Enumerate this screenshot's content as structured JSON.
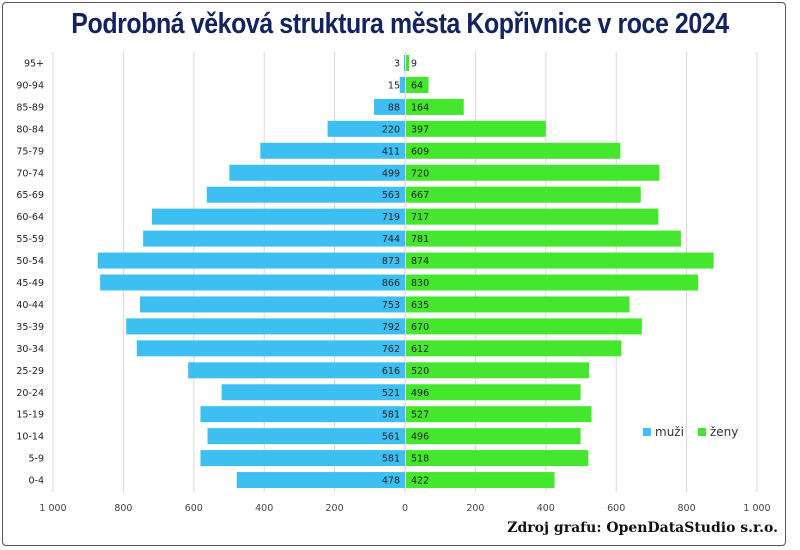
{
  "chart_data": {
    "type": "bar",
    "orientation": "horizontal-pyramid",
    "title": "Podrobná věková struktura města Kopřivnice v roce 2024",
    "categories": [
      "95+",
      "90-94",
      "85-89",
      "80-84",
      "75-79",
      "70-74",
      "65-69",
      "60-64",
      "55-59",
      "50-54",
      "45-49",
      "40-44",
      "35-39",
      "30-34",
      "25-29",
      "20-24",
      "15-19",
      "10-14",
      "5-9",
      "0-4"
    ],
    "series": [
      {
        "name": "muži",
        "color": "#3dbff2",
        "values": [
          3,
          15,
          88,
          220,
          411,
          499,
          563,
          719,
          744,
          873,
          866,
          753,
          792,
          762,
          616,
          521,
          581,
          561,
          581,
          478
        ]
      },
      {
        "name": "ženy",
        "color": "#45e62e",
        "values": [
          9,
          64,
          164,
          397,
          609,
          720,
          667,
          717,
          781,
          874,
          830,
          635,
          670,
          612,
          520,
          496,
          527,
          496,
          518,
          422
        ]
      }
    ],
    "xlim": [
      -1000,
      1000
    ],
    "xticks": [
      "1 000",
      "800",
      "600",
      "400",
      "200",
      "0",
      "200",
      "400",
      "600",
      "800",
      "1 000"
    ],
    "grid": true,
    "legend": "bottom-right"
  },
  "source": "Zdroj grafu: OpenDataStudio s.r.o."
}
